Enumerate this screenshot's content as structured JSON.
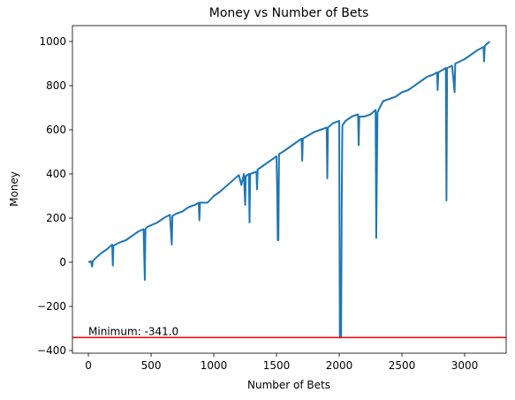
{
  "chart_data": {
    "type": "line",
    "title": "Money vs Number of Bets",
    "xlabel": "Number of Bets",
    "ylabel": "Money",
    "color": "#1f77b4",
    "x": [
      0,
      20,
      30,
      35,
      60,
      100,
      150,
      190,
      195,
      200,
      250,
      300,
      350,
      400,
      440,
      450,
      455,
      470,
      550,
      600,
      650,
      665,
      670,
      700,
      750,
      800,
      850,
      880,
      885,
      890,
      950,
      1000,
      1050,
      1100,
      1150,
      1200,
      1220,
      1240,
      1250,
      1255,
      1280,
      1285,
      1290,
      1340,
      1345,
      1350,
      1400,
      1450,
      1500,
      1505,
      1510,
      1515,
      1520,
      1550,
      1600,
      1650,
      1700,
      1705,
      1710,
      1800,
      1850,
      1900,
      1905,
      1910,
      1950,
      2000,
      2005,
      2015,
      2020,
      2025,
      2050,
      2100,
      2150,
      2155,
      2160,
      2200,
      2250,
      2290,
      2295,
      2305,
      2350,
      2400,
      2450,
      2500,
      2550,
      2600,
      2650,
      2700,
      2750,
      2780,
      2785,
      2790,
      2850,
      2855,
      2860,
      2900,
      2920,
      2925,
      3000,
      3050,
      3100,
      3150,
      3155,
      3160,
      3200
    ],
    "values": [
      0,
      5,
      -20,
      5,
      20,
      40,
      60,
      80,
      -15,
      75,
      90,
      100,
      120,
      140,
      150,
      -80,
      150,
      160,
      180,
      200,
      215,
      80,
      210,
      220,
      230,
      250,
      260,
      270,
      190,
      270,
      270,
      300,
      320,
      345,
      370,
      395,
      350,
      400,
      260,
      390,
      400,
      180,
      400,
      410,
      330,
      420,
      440,
      460,
      480,
      340,
      100,
      100,
      490,
      500,
      520,
      540,
      560,
      460,
      560,
      590,
      600,
      610,
      380,
      610,
      630,
      640,
      -341,
      -341,
      260,
      620,
      640,
      660,
      670,
      530,
      660,
      660,
      670,
      690,
      110,
      680,
      730,
      740,
      750,
      770,
      780,
      800,
      820,
      840,
      850,
      860,
      780,
      860,
      880,
      280,
      880,
      890,
      770,
      900,
      920,
      940,
      960,
      975,
      910,
      980,
      1000
    ],
    "xlim": [
      -127,
      3331
    ],
    "ylim": [
      -412,
      1072
    ],
    "xticks": [
      0,
      500,
      1000,
      1500,
      2000,
      2500,
      3000
    ],
    "yticks": [
      {
        "value": -400,
        "label": "−400"
      },
      {
        "value": -200,
        "label": "−200"
      },
      0,
      200,
      400,
      600,
      800,
      1000
    ],
    "hline": {
      "value": -341,
      "color": "#ff0000"
    },
    "annotation": "Minimum: -341.0"
  }
}
